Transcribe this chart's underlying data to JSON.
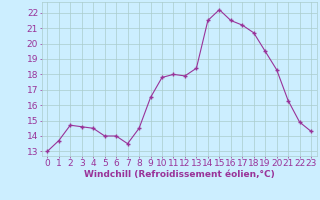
{
  "x": [
    0,
    1,
    2,
    3,
    4,
    5,
    6,
    7,
    8,
    9,
    10,
    11,
    12,
    13,
    14,
    15,
    16,
    17,
    18,
    19,
    20,
    21,
    22,
    23
  ],
  "y": [
    13.0,
    13.7,
    14.7,
    14.6,
    14.5,
    14.0,
    14.0,
    13.5,
    14.5,
    16.5,
    17.8,
    18.0,
    17.9,
    18.4,
    21.5,
    22.2,
    21.5,
    21.2,
    20.7,
    19.5,
    18.3,
    16.3,
    14.9,
    14.3
  ],
  "line_color": "#993399",
  "marker_color": "#993399",
  "bg_color": "#cceeff",
  "grid_color": "#aacccc",
  "xlabel": "Windchill (Refroidissement éolien,°C)",
  "ylabel_ticks": [
    13,
    14,
    15,
    16,
    17,
    18,
    19,
    20,
    21,
    22
  ],
  "xtick_labels": [
    "0",
    "1",
    "2",
    "3",
    "4",
    "5",
    "6",
    "7",
    "8",
    "9",
    "10",
    "11",
    "12",
    "13",
    "14",
    "15",
    "16",
    "17",
    "18",
    "19",
    "20",
    "21",
    "22",
    "23"
  ],
  "ylim": [
    12.7,
    22.7
  ],
  "xlim": [
    -0.5,
    23.5
  ],
  "label_color": "#993399",
  "label_fontsize": 6.5,
  "tick_fontsize": 6.5
}
